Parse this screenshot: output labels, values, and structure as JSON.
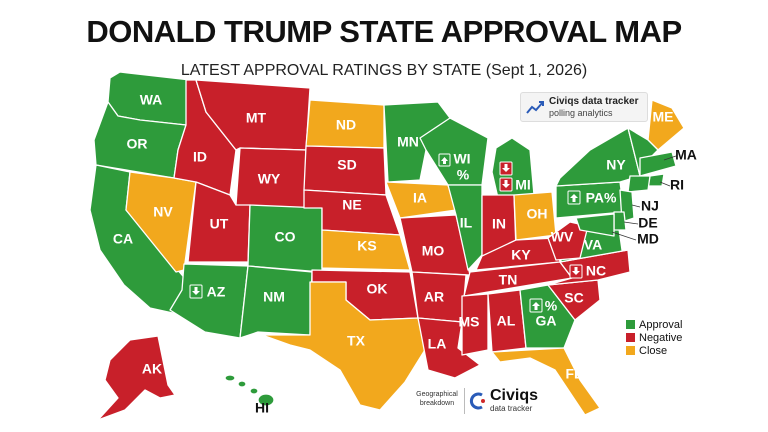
{
  "title": "DONALD TRUMP STATE APPROVAL MAP",
  "subtitle": "LATEST APPROVAL RATINGS BY STATE (Sept 1, 2026)",
  "tracker": {
    "name": "Civiqs data tracker",
    "tagline": "polling analytics",
    "icon": "line-chart-icon"
  },
  "legend": [
    {
      "label": "Approval",
      "color": "#2e9b3b"
    },
    {
      "label": "Negative",
      "color": "#c8202a"
    },
    {
      "label": "Close",
      "color": "#f2a81d"
    }
  ],
  "footer": {
    "left_text": "Geographical breakdown",
    "brand": "Civiqs",
    "brand_sub": "data tracker"
  },
  "colors": {
    "approval": "#2e9b3b",
    "negative": "#c8202a",
    "close": "#f2a81d",
    "border": "#ffffff"
  },
  "states": {
    "WA": {
      "label": "WA",
      "status": "approval"
    },
    "OR": {
      "label": "OR",
      "status": "approval"
    },
    "CA": {
      "label": "CA",
      "status": "approval"
    },
    "NV": {
      "label": "NV",
      "status": "close"
    },
    "ID": {
      "label": "ID",
      "status": "negative"
    },
    "MT": {
      "label": "MT",
      "status": "negative"
    },
    "WY": {
      "label": "WY",
      "status": "negative"
    },
    "UT": {
      "label": "UT",
      "status": "negative"
    },
    "CO": {
      "label": "CO",
      "status": "approval"
    },
    "AZ": {
      "label": "AZ",
      "status": "approval"
    },
    "NM": {
      "label": "NM",
      "status": "approval"
    },
    "ND": {
      "label": "ND",
      "status": "close"
    },
    "SD": {
      "label": "SD",
      "status": "negative"
    },
    "NE": {
      "label": "NE",
      "status": "negative"
    },
    "KS": {
      "label": "KS",
      "status": "close"
    },
    "OK": {
      "label": "OK",
      "status": "negative"
    },
    "TX": {
      "label": "TX",
      "status": "close"
    },
    "MN": {
      "label": "MN",
      "status": "approval"
    },
    "IA": {
      "label": "IA",
      "status": "close"
    },
    "MO": {
      "label": "MO",
      "status": "negative"
    },
    "AR": {
      "label": "AR",
      "status": "negative"
    },
    "LA": {
      "label": "LA",
      "status": "negative"
    },
    "WI": {
      "label": "WI\n%",
      "status": "approval"
    },
    "IL": {
      "label": "IL",
      "status": "approval"
    },
    "MI": {
      "label": "MI",
      "status": "approval"
    },
    "IN": {
      "label": "IN",
      "status": "negative"
    },
    "OH": {
      "label": "OH",
      "status": "close"
    },
    "KY": {
      "label": "KY",
      "status": "negative"
    },
    "TN": {
      "label": "TN",
      "status": "negative"
    },
    "MS": {
      "label": "MS",
      "status": "negative"
    },
    "AL": {
      "label": "AL",
      "status": "negative"
    },
    "GA": {
      "label": "GA",
      "status": "approval"
    },
    "FL": {
      "label": "FL",
      "status": "close"
    },
    "SC": {
      "label": "SC",
      "status": "negative"
    },
    "NC": {
      "label": "NC",
      "status": "negative"
    },
    "VA": {
      "label": "VA",
      "status": "approval"
    },
    "WV": {
      "label": "WV",
      "status": "negative"
    },
    "PA": {
      "label": "PA%",
      "status": "approval"
    },
    "NY": {
      "label": "NY",
      "status": "approval"
    },
    "ME": {
      "label": "ME",
      "status": "close"
    },
    "MA": {
      "label": "MA",
      "status": "approval"
    },
    "RI": {
      "label": "RI",
      "status": "approval"
    },
    "NJ": {
      "label": "NJ",
      "status": "approval"
    },
    "DE": {
      "label": "DE",
      "status": "approval"
    },
    "MD": {
      "label": "MD",
      "status": "approval"
    },
    "AK": {
      "label": "AK",
      "status": "negative"
    },
    "HI": {
      "label": "HI",
      "status": "approval"
    }
  },
  "ga_percent": "%"
}
